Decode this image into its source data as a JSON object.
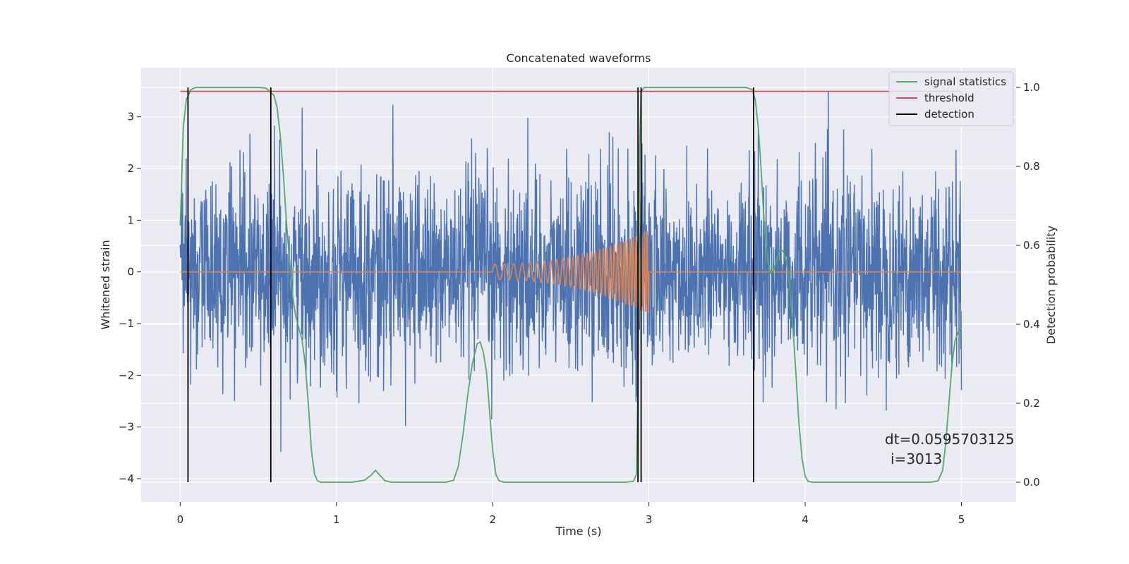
{
  "chart_data": {
    "type": "line",
    "title": "Concatenated waveforms",
    "xlabel": "Time (s)",
    "ylabel": "Whitened strain",
    "y2label": "Detection probability",
    "xlim": [
      -0.25,
      5.35
    ],
    "ylim": [
      -4.45,
      3.95
    ],
    "y2lim": [
      -0.05,
      1.05
    ],
    "x_ticks": [
      0,
      1,
      2,
      3,
      4,
      5
    ],
    "y_ticks": [
      -4,
      -3,
      -2,
      -1,
      0,
      1,
      2,
      3
    ],
    "y2_ticks": [
      0.0,
      0.2,
      0.4,
      0.6,
      0.8,
      1.0
    ],
    "x_tick_labels": [
      "0",
      "1",
      "2",
      "3",
      "4",
      "5"
    ],
    "y_tick_labels": [
      "−4",
      "−3",
      "−2",
      "−1",
      "0",
      "1",
      "2",
      "3"
    ],
    "y2_tick_labels": [
      "0.0",
      "0.2",
      "0.4",
      "0.6",
      "0.8",
      "1.0"
    ],
    "grid": true,
    "legend_position": "top-right",
    "annotation": {
      "line1": "dt=0.0595703125",
      "line2": "i=3013",
      "x": 4.52,
      "y": -3.6
    },
    "noise": {
      "t_start": 0.0,
      "t_end": 5.0,
      "amplitude_typical": 1.5,
      "amplitude_max": 3.5,
      "color": "#4c72b0"
    },
    "chirp": {
      "t_start": 2.0,
      "t_end": 3.0,
      "amp_start": 0.15,
      "amp_end": 0.8,
      "freq_start": 16,
      "freq_end": 60,
      "color": "#dd8452"
    },
    "signal_statistics": {
      "color": "#55a868",
      "points": [
        [
          0.0,
          0.65
        ],
        [
          0.02,
          0.9
        ],
        [
          0.04,
          0.97
        ],
        [
          0.07,
          0.995
        ],
        [
          0.1,
          1.0
        ],
        [
          0.2,
          1.0
        ],
        [
          0.3,
          1.0
        ],
        [
          0.4,
          1.0
        ],
        [
          0.5,
          1.0
        ],
        [
          0.55,
          0.998
        ],
        [
          0.6,
          0.98
        ],
        [
          0.62,
          0.95
        ],
        [
          0.64,
          0.88
        ],
        [
          0.66,
          0.78
        ],
        [
          0.68,
          0.66
        ],
        [
          0.7,
          0.56
        ],
        [
          0.72,
          0.47
        ],
        [
          0.74,
          0.42
        ],
        [
          0.76,
          0.39
        ],
        [
          0.78,
          0.36
        ],
        [
          0.8,
          0.3
        ],
        [
          0.82,
          0.2
        ],
        [
          0.84,
          0.08
        ],
        [
          0.86,
          0.02
        ],
        [
          0.88,
          0.003
        ],
        [
          0.9,
          0.0
        ],
        [
          1.0,
          0.0
        ],
        [
          1.1,
          0.0
        ],
        [
          1.18,
          0.005
        ],
        [
          1.22,
          0.017
        ],
        [
          1.25,
          0.03
        ],
        [
          1.28,
          0.017
        ],
        [
          1.31,
          0.004
        ],
        [
          1.35,
          0.0
        ],
        [
          1.5,
          0.0
        ],
        [
          1.7,
          0.0
        ],
        [
          1.75,
          0.005
        ],
        [
          1.78,
          0.04
        ],
        [
          1.81,
          0.12
        ],
        [
          1.84,
          0.22
        ],
        [
          1.87,
          0.3
        ],
        [
          1.9,
          0.35
        ],
        [
          1.92,
          0.355
        ],
        [
          1.94,
          0.33
        ],
        [
          1.96,
          0.28
        ],
        [
          1.98,
          0.18
        ],
        [
          2.0,
          0.08
        ],
        [
          2.02,
          0.02
        ],
        [
          2.04,
          0.004
        ],
        [
          2.07,
          0.0
        ],
        [
          2.3,
          0.0
        ],
        [
          2.6,
          0.0
        ],
        [
          2.85,
          0.0
        ],
        [
          2.9,
          0.002
        ],
        [
          2.92,
          0.02
        ],
        [
          2.93,
          0.25
        ],
        [
          2.94,
          0.85
        ],
        [
          2.95,
          0.99
        ],
        [
          2.97,
          1.0
        ],
        [
          3.1,
          1.0
        ],
        [
          3.3,
          1.0
        ],
        [
          3.5,
          1.0
        ],
        [
          3.62,
          1.0
        ],
        [
          3.66,
          0.995
        ],
        [
          3.68,
          0.97
        ],
        [
          3.7,
          0.9
        ],
        [
          3.72,
          0.78
        ],
        [
          3.74,
          0.64
        ],
        [
          3.76,
          0.56
        ],
        [
          3.78,
          0.53
        ],
        [
          3.8,
          0.54
        ],
        [
          3.82,
          0.57
        ],
        [
          3.84,
          0.59
        ],
        [
          3.86,
          0.585
        ],
        [
          3.88,
          0.56
        ],
        [
          3.9,
          0.5
        ],
        [
          3.92,
          0.4
        ],
        [
          3.94,
          0.28
        ],
        [
          3.96,
          0.15
        ],
        [
          3.98,
          0.06
        ],
        [
          4.0,
          0.015
        ],
        [
          4.02,
          0.002
        ],
        [
          4.05,
          0.0
        ],
        [
          4.5,
          0.0
        ],
        [
          4.8,
          0.0
        ],
        [
          4.85,
          0.003
        ],
        [
          4.88,
          0.03
        ],
        [
          4.9,
          0.1
        ],
        [
          4.92,
          0.2
        ],
        [
          4.94,
          0.3
        ],
        [
          4.96,
          0.36
        ],
        [
          4.98,
          0.38
        ],
        [
          5.0,
          0.39
        ]
      ]
    },
    "threshold": {
      "value": 0.99,
      "t_start": 0.0,
      "t_end": 5.0,
      "color": "#c44e52"
    },
    "detections": {
      "times": [
        0.05,
        0.58,
        2.93,
        2.95,
        3.67
      ],
      "color": "#000000"
    },
    "series": [
      {
        "name": "signal statistics",
        "color": "#55a868"
      },
      {
        "name": "threshold",
        "color": "#c44e52"
      },
      {
        "name": "detection",
        "color": "#000000"
      }
    ]
  }
}
